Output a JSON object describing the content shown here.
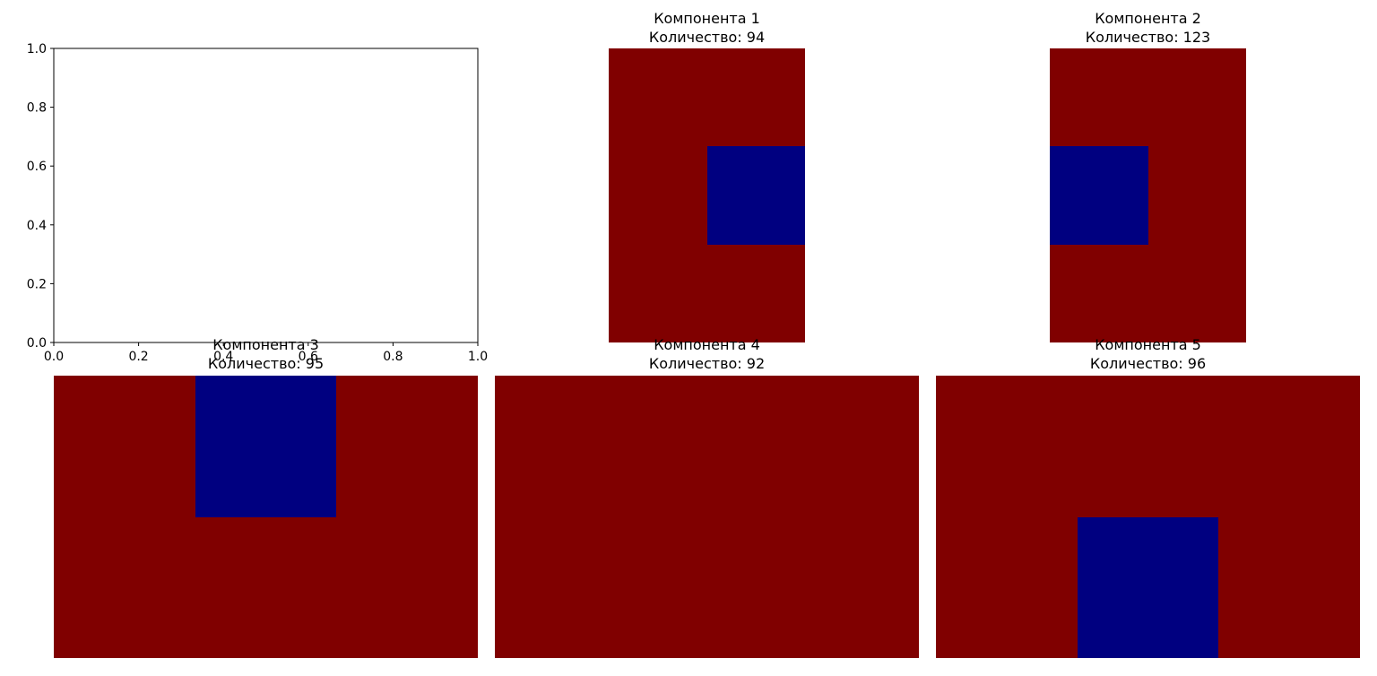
{
  "chart_data": [
    {
      "type": "line",
      "title": "",
      "xlabel": "",
      "ylabel": "",
      "xlim": [
        0,
        1
      ],
      "ylim": [
        0,
        1
      ],
      "grid": false,
      "xticks": [
        "0.0",
        "0.2",
        "0.4",
        "0.6",
        "0.8",
        "1.0"
      ],
      "yticks": [
        "0.0",
        "0.2",
        "0.4",
        "0.6",
        "0.8",
        "1.0"
      ],
      "series": []
    },
    {
      "type": "heatmap",
      "title": "Компонента 1",
      "subtitle": "Количество: 94",
      "rows": 3,
      "cols": 2,
      "values": [
        [
          1,
          1
        ],
        [
          1,
          0
        ],
        [
          1,
          1
        ]
      ]
    },
    {
      "type": "heatmap",
      "title": "Компонента 2",
      "subtitle": "Количество: 123",
      "rows": 3,
      "cols": 2,
      "values": [
        [
          1,
          1
        ],
        [
          0,
          1
        ],
        [
          1,
          1
        ]
      ]
    },
    {
      "type": "heatmap",
      "title": "Компонента 3",
      "subtitle": "Количество: 95",
      "rows": 2,
      "cols": 3,
      "values": [
        [
          1,
          0,
          1
        ],
        [
          1,
          1,
          1
        ]
      ]
    },
    {
      "type": "heatmap",
      "title": "Компонента 4",
      "subtitle": "Количество: 92",
      "rows": 2,
      "cols": 3,
      "values": [
        [
          1,
          1,
          1
        ],
        [
          1,
          1,
          1
        ]
      ]
    },
    {
      "type": "heatmap",
      "title": "Компонента 5",
      "subtitle": "Количество: 96",
      "rows": 2,
      "cols": 3,
      "values": [
        [
          1,
          1,
          1
        ],
        [
          1,
          0,
          1
        ]
      ]
    }
  ],
  "colors": {
    "high": "#800000",
    "low": "#000080"
  }
}
